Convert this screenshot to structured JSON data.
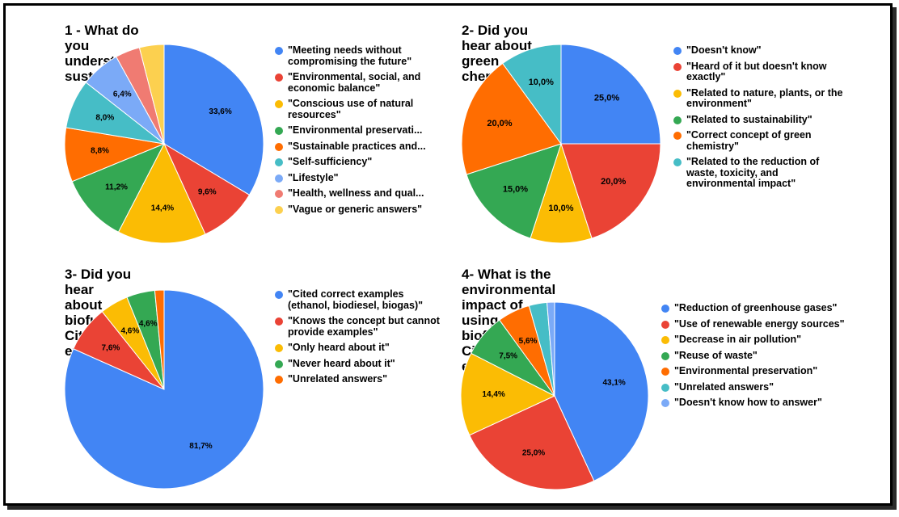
{
  "chart_data": [
    {
      "type": "pie",
      "title": "1 - What do you understand by sustainability?",
      "series": [
        {
          "name": "\"Meeting needs without compromising the future\"",
          "value": 33.6,
          "label": "33,6%",
          "color": "#4285F4"
        },
        {
          "name": "\"Environmental, social, and economic balance\"",
          "value": 9.6,
          "label": "9,6%",
          "color": "#EA4335"
        },
        {
          "name": "\"Conscious use of natural resources\"",
          "value": 14.4,
          "label": "14,4%",
          "color": "#FBBC04"
        },
        {
          "name": "\"Environmental preservati...",
          "value": 11.2,
          "label": "11,2%",
          "color": "#34A853"
        },
        {
          "name": "\"Sustainable practices and...",
          "value": 8.8,
          "label": "8,8%",
          "color": "#FF6D01"
        },
        {
          "name": "\"Self-sufficiency\"",
          "value": 8.0,
          "label": "8,0%",
          "color": "#46BDC6"
        },
        {
          "name": "\"Lifestyle\"",
          "value": 6.4,
          "label": "6,4%",
          "color": "#7BAAF7"
        },
        {
          "name": "\"Health, wellness and qual...",
          "value": 4.0,
          "label": "",
          "color": "#F07B72"
        },
        {
          "name": "\"Vague or generic answers\"",
          "value": 4.0,
          "label": "",
          "color": "#FCD04F"
        }
      ]
    },
    {
      "type": "pie",
      "title": "2- Did you hear about green chemistry?",
      "series": [
        {
          "name": "\"Doesn't know\"",
          "value": 25.0,
          "label": "25,0%",
          "color": "#4285F4"
        },
        {
          "name": "\"Heard of it but doesn't know exactly\"",
          "value": 20.0,
          "label": "20,0%",
          "color": "#EA4335"
        },
        {
          "name": "\"Related to nature, plants, or the environment\"",
          "value": 10.0,
          "label": "10,0%",
          "color": "#FBBC04"
        },
        {
          "name": "\"Related to sustainability\"",
          "value": 15.0,
          "label": "15,0%",
          "color": "#34A853"
        },
        {
          "name": "\"Correct concept of green chemistry\"",
          "value": 20.0,
          "label": "20,0%",
          "color": "#FF6D01"
        },
        {
          "name": "\"Related to the reduction of waste, toxicity, and environmental impact\"",
          "value": 10.0,
          "label": "10,0%",
          "color": "#46BDC6"
        }
      ]
    },
    {
      "type": "pie",
      "title": "3- Did you hear about biofuels? Cite some examples.",
      "series": [
        {
          "name": "\"Cited correct examples (ethanol, biodiesel, biogas)\"",
          "value": 81.7,
          "label": "81,7%",
          "color": "#4285F4"
        },
        {
          "name": "\"Knows the concept but cannot provide examples\"",
          "value": 7.6,
          "label": "7,6%",
          "color": "#EA4335"
        },
        {
          "name": "\"Only heard about it\"",
          "value": 4.6,
          "label": "4,6%",
          "color": "#FBBC04"
        },
        {
          "name": "\"Never heard about it\"",
          "value": 4.6,
          "label": "4,6%",
          "color": "#34A853"
        },
        {
          "name": "\"Unrelated answers\"",
          "value": 1.5,
          "label": "",
          "color": "#FF6D01"
        }
      ]
    },
    {
      "type": "pie",
      "title": "4- What is the environmental impact of using biofuels?\nCite two examples.",
      "series": [
        {
          "name": "\"Reduction of greenhouse gases\"",
          "value": 43.1,
          "label": "43,1%",
          "color": "#4285F4"
        },
        {
          "name": "\"Use of renewable energy sources\"",
          "value": 25.0,
          "label": "25,0%",
          "color": "#EA4335"
        },
        {
          "name": "\"Decrease in air pollution\"",
          "value": 14.4,
          "label": "14,4%",
          "color": "#FBBC04"
        },
        {
          "name": "\"Reuse of waste\"",
          "value": 7.5,
          "label": "7,5%",
          "color": "#34A853"
        },
        {
          "name": "\"Environmental preservation\"",
          "value": 5.6,
          "label": "5,6%",
          "color": "#FF6D01"
        },
        {
          "name": "\"Unrelated answers\"",
          "value": 3.1,
          "label": "",
          "color": "#46BDC6"
        },
        {
          "name": "\"Doesn't know how to answer\"",
          "value": 1.3,
          "label": "",
          "color": "#7BAAF7"
        }
      ]
    }
  ]
}
